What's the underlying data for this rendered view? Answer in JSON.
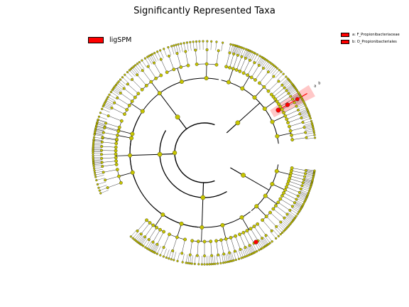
{
  "title": "Significantly Represented Taxa",
  "legend": {
    "group": {
      "label": "ligSPM",
      "color": "#ff0000"
    },
    "taxa": [
      {
        "label": "a: F_Propionibacteriaceae",
        "color": "#ff0000"
      },
      {
        "label": "b: O_Propionibacteriales",
        "color": "#ff0000"
      }
    ]
  },
  "colors": {
    "node_default": "#c6c400",
    "node_highlight": "#ff0000",
    "node_outline": "#000000",
    "branch": "#000000",
    "highlight_band": "#ff9999"
  },
  "clade_labels": {
    "a": "a",
    "b": "b"
  }
}
